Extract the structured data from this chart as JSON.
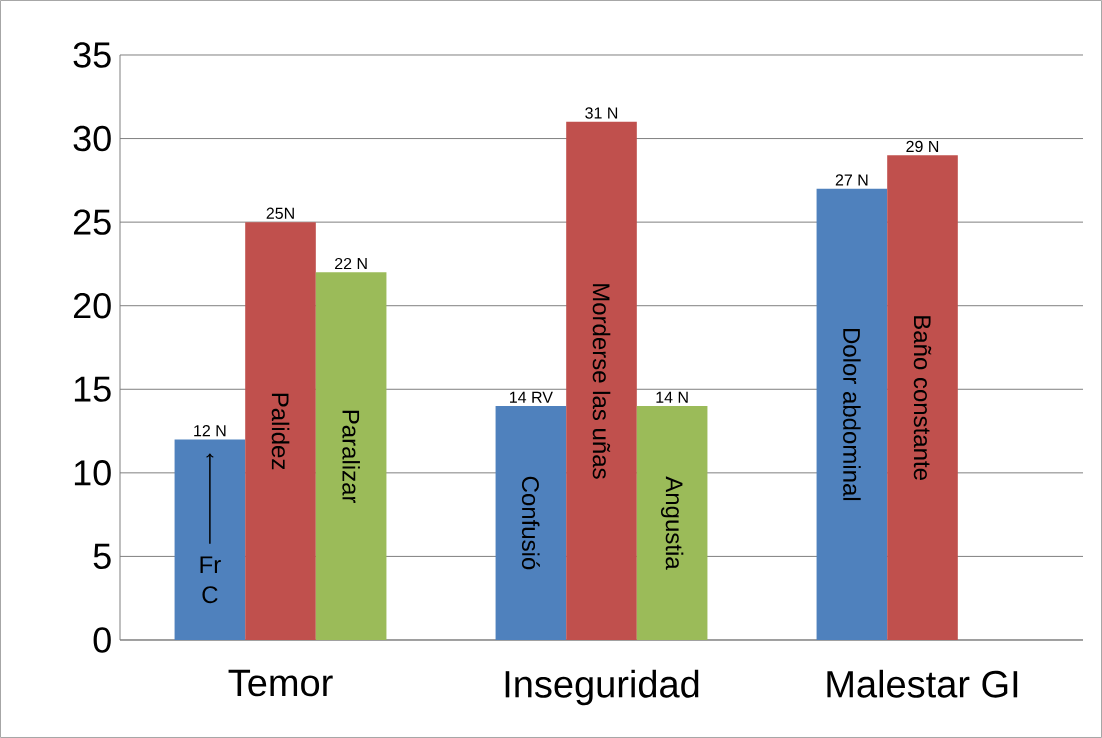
{
  "chart_data": {
    "type": "bar",
    "categories": [
      "Temor",
      "Inseguridad",
      "Malestar GI"
    ],
    "series": [
      {
        "color": "#4f81bd",
        "values": [
          12,
          14,
          27
        ],
        "value_labels": [
          "12 N",
          "14 RV",
          "27 N"
        ]
      },
      {
        "color": "#c0504d",
        "values": [
          25,
          31,
          29
        ],
        "value_labels": [
          "25N",
          "31 N",
          "29 N"
        ]
      },
      {
        "color": "#9bbb59",
        "values": [
          22,
          14,
          null
        ],
        "value_labels": [
          "22 N",
          "14 N",
          null
        ]
      }
    ],
    "annotations": [
      "Fr C",
      "Palidez",
      "Paralizar",
      "Confusió",
      "Morderse las uñas",
      "Angustia",
      "Dolor abdominal",
      "Baño constante"
    ],
    "ylim": [
      0,
      35
    ],
    "yticks": [
      0,
      5,
      10,
      15,
      20,
      25,
      30,
      35
    ],
    "grid": "y"
  }
}
